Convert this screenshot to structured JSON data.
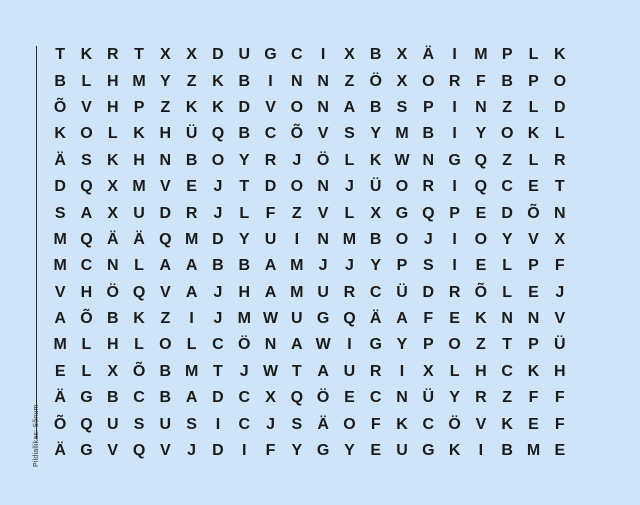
{
  "side_label": "Pildiallikas: Sõnum",
  "grid": [
    [
      "T",
      "K",
      "R",
      "T",
      "X",
      "X",
      "D",
      "U",
      "G",
      "C",
      "I",
      "X",
      "B",
      "X",
      "Ä",
      "I",
      "M",
      "P",
      "L",
      "K"
    ],
    [
      "B",
      "L",
      "H",
      "M",
      "Y",
      "Z",
      "K",
      "B",
      "I",
      "N",
      "N",
      "Z",
      "Ö",
      "X",
      "O",
      "R",
      "F",
      "B",
      "P",
      "O"
    ],
    [
      "Õ",
      "V",
      "H",
      "P",
      "Z",
      "K",
      "K",
      "D",
      "V",
      "O",
      "N",
      "A",
      "B",
      "S",
      "P",
      "I",
      "N",
      "Z",
      "L",
      "D"
    ],
    [
      "K",
      "O",
      "L",
      "K",
      "H",
      "Ü",
      "Q",
      "B",
      "C",
      "Õ",
      "V",
      "S",
      "Y",
      "M",
      "B",
      "I",
      "Y",
      "O",
      "K",
      "L"
    ],
    [
      "Ä",
      "S",
      "K",
      "H",
      "N",
      "B",
      "O",
      "Y",
      "R",
      "J",
      "Ö",
      "L",
      "K",
      "W",
      "N",
      "G",
      "Q",
      "Z",
      "L",
      "R"
    ],
    [
      "D",
      "Q",
      "X",
      "M",
      "V",
      "E",
      "J",
      "T",
      "D",
      "O",
      "N",
      "J",
      "Ü",
      "O",
      "R",
      "I",
      "Q",
      "C",
      "E",
      "T"
    ],
    [
      "S",
      "A",
      "X",
      "U",
      "D",
      "R",
      "J",
      "L",
      "F",
      "Z",
      "V",
      "L",
      "X",
      "G",
      "Q",
      "P",
      "E",
      "D",
      "Õ",
      "N"
    ],
    [
      "M",
      "Q",
      "Ä",
      "Ä",
      "Q",
      "M",
      "D",
      "Y",
      "U",
      "I",
      "N",
      "M",
      "B",
      "O",
      "J",
      "I",
      "O",
      "Y",
      "V",
      "X"
    ],
    [
      "M",
      "C",
      "N",
      "L",
      "A",
      "A",
      "B",
      "B",
      "A",
      "M",
      "J",
      "J",
      "Y",
      "P",
      "S",
      "I",
      "E",
      "L",
      "P",
      "F"
    ],
    [
      "V",
      "H",
      "Ö",
      "Q",
      "V",
      "A",
      "J",
      "H",
      "A",
      "M",
      "U",
      "R",
      "C",
      "Ü",
      "D",
      "R",
      "Õ",
      "L",
      "E",
      "J"
    ],
    [
      "A",
      "Õ",
      "B",
      "K",
      "Z",
      "I",
      "J",
      "M",
      "W",
      "U",
      "G",
      "Q",
      "Ä",
      "A",
      "F",
      "E",
      "K",
      "N",
      "N",
      "V"
    ],
    [
      "M",
      "L",
      "H",
      "L",
      "O",
      "L",
      "C",
      "Ö",
      "N",
      "A",
      "W",
      "I",
      "G",
      "Y",
      "P",
      "O",
      "Z",
      "T",
      "P",
      "Ü"
    ],
    [
      "E",
      "L",
      "X",
      "Õ",
      "B",
      "M",
      "T",
      "J",
      "W",
      "T",
      "A",
      "U",
      "R",
      "I",
      "X",
      "L",
      "H",
      "C",
      "K",
      "H"
    ],
    [
      "Ä",
      "G",
      "B",
      "C",
      "B",
      "A",
      "D",
      "C",
      "X",
      "Q",
      "Ö",
      "E",
      "C",
      "N",
      "Ü",
      "Y",
      "R",
      "Z",
      "F",
      "F"
    ],
    [
      "Õ",
      "Q",
      "U",
      "S",
      "U",
      "S",
      "I",
      "C",
      "J",
      "S",
      "Ä",
      "O",
      "F",
      "K",
      "C",
      "Ö",
      "V",
      "K",
      "E",
      "F"
    ],
    [
      "Ä",
      "G",
      "V",
      "Q",
      "V",
      "J",
      "D",
      "I",
      "F",
      "Y",
      "G",
      "Y",
      "E",
      "U",
      "G",
      "K",
      "I",
      "B",
      "M",
      "E"
    ]
  ]
}
